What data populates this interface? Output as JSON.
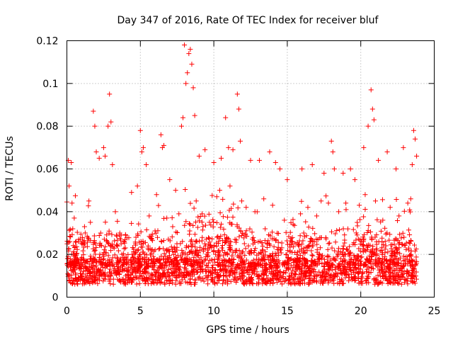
{
  "chart_data": {
    "type": "scatter",
    "title": "Day 347 of 2016, Rate Of TEC Index for receiver bluf",
    "xlabel": "GPS time / hours",
    "ylabel": "ROTI / TECUs",
    "xlim": [
      0,
      25
    ],
    "ylim": [
      0,
      0.12
    ],
    "x_ticks": [
      0,
      5,
      10,
      15,
      20,
      25
    ],
    "y_ticks": [
      0,
      0.02,
      0.04,
      0.06,
      0.08,
      0.1,
      0.12
    ],
    "x_tick_labels": [
      "0",
      "5",
      "10",
      "15",
      "20",
      "25"
    ],
    "y_tick_labels": [
      "0",
      "0.02",
      "0.04",
      "0.06",
      "0.08",
      "0.1",
      "0.12"
    ],
    "grid": true,
    "marker": "+",
    "marker_color": "#ff0000",
    "x_data_range": [
      0,
      23.8
    ],
    "series": [
      {
        "name": "ROTI",
        "points": [
          [
            0.1,
            0.064
          ],
          [
            0.15,
            0.052
          ],
          [
            0.3,
            0.063
          ],
          [
            0.35,
            0.044
          ],
          [
            0.4,
            0.032
          ],
          [
            0.5,
            0.037
          ],
          [
            1.5,
            0.045
          ],
          [
            1.8,
            0.087
          ],
          [
            1.9,
            0.08
          ],
          [
            2.0,
            0.068
          ],
          [
            2.2,
            0.065
          ],
          [
            2.5,
            0.07
          ],
          [
            2.6,
            0.066
          ],
          [
            2.8,
            0.08
          ],
          [
            2.9,
            0.095
          ],
          [
            3.0,
            0.082
          ],
          [
            3.1,
            0.062
          ],
          [
            3.3,
            0.04
          ],
          [
            4.4,
            0.049
          ],
          [
            4.8,
            0.052
          ],
          [
            5.0,
            0.078
          ],
          [
            5.1,
            0.068
          ],
          [
            5.2,
            0.07
          ],
          [
            5.4,
            0.062
          ],
          [
            6.1,
            0.048
          ],
          [
            6.4,
            0.076
          ],
          [
            6.5,
            0.07
          ],
          [
            6.6,
            0.071
          ],
          [
            7.0,
            0.055
          ],
          [
            7.4,
            0.05
          ],
          [
            7.8,
            0.08
          ],
          [
            7.9,
            0.084
          ],
          [
            8.0,
            0.118
          ],
          [
            8.1,
            0.1
          ],
          [
            8.2,
            0.105
          ],
          [
            8.3,
            0.114
          ],
          [
            8.4,
            0.116
          ],
          [
            8.5,
            0.109
          ],
          [
            8.6,
            0.098
          ],
          [
            8.7,
            0.085
          ],
          [
            9.0,
            0.066
          ],
          [
            9.4,
            0.069
          ],
          [
            10.0,
            0.063
          ],
          [
            10.5,
            0.065
          ],
          [
            10.8,
            0.084
          ],
          [
            11.0,
            0.07
          ],
          [
            11.3,
            0.069
          ],
          [
            11.6,
            0.095
          ],
          [
            11.7,
            0.088
          ],
          [
            11.8,
            0.073
          ],
          [
            12.5,
            0.064
          ],
          [
            13.1,
            0.064
          ],
          [
            13.8,
            0.068
          ],
          [
            14.2,
            0.063
          ],
          [
            14.5,
            0.06
          ],
          [
            15.0,
            0.055
          ],
          [
            16.0,
            0.06
          ],
          [
            16.7,
            0.062
          ],
          [
            17.5,
            0.058
          ],
          [
            18.0,
            0.073
          ],
          [
            18.1,
            0.068
          ],
          [
            18.2,
            0.06
          ],
          [
            18.8,
            0.058
          ],
          [
            19.3,
            0.06
          ],
          [
            19.6,
            0.055
          ],
          [
            20.2,
            0.07
          ],
          [
            20.5,
            0.08
          ],
          [
            20.7,
            0.097
          ],
          [
            20.8,
            0.088
          ],
          [
            20.9,
            0.083
          ],
          [
            21.2,
            0.064
          ],
          [
            21.8,
            0.068
          ],
          [
            22.4,
            0.06
          ],
          [
            22.9,
            0.07
          ],
          [
            23.5,
            0.062
          ],
          [
            23.6,
            0.078
          ],
          [
            23.7,
            0.074
          ],
          [
            23.8,
            0.066
          ],
          [
            0.2,
            0.026
          ],
          [
            0.8,
            0.027
          ],
          [
            1.2,
            0.033
          ],
          [
            1.6,
            0.035
          ],
          [
            2.3,
            0.03
          ],
          [
            3.6,
            0.03
          ],
          [
            4.0,
            0.029
          ],
          [
            4.7,
            0.028
          ],
          [
            5.6,
            0.038
          ],
          [
            6.0,
            0.031
          ],
          [
            6.8,
            0.037
          ],
          [
            7.2,
            0.033
          ],
          [
            8.8,
            0.045
          ],
          [
            9.2,
            0.039
          ],
          [
            9.7,
            0.035
          ],
          [
            10.2,
            0.047
          ],
          [
            10.4,
            0.05
          ],
          [
            11.1,
            0.052
          ],
          [
            11.9,
            0.045
          ],
          [
            12.2,
            0.042
          ],
          [
            12.8,
            0.04
          ],
          [
            13.4,
            0.046
          ],
          [
            14.0,
            0.043
          ],
          [
            14.8,
            0.036
          ],
          [
            15.4,
            0.034
          ],
          [
            15.9,
            0.039
          ],
          [
            16.4,
            0.042
          ],
          [
            17.0,
            0.038
          ],
          [
            17.3,
            0.045
          ],
          [
            17.8,
            0.044
          ],
          [
            18.5,
            0.04
          ],
          [
            19.0,
            0.041
          ],
          [
            19.9,
            0.043
          ],
          [
            20.3,
            0.048
          ],
          [
            21.0,
            0.045
          ],
          [
            21.5,
            0.036
          ],
          [
            22.0,
            0.042
          ],
          [
            22.6,
            0.038
          ],
          [
            23.2,
            0.044
          ],
          [
            23.4,
            0.046
          ]
        ]
      }
    ]
  }
}
